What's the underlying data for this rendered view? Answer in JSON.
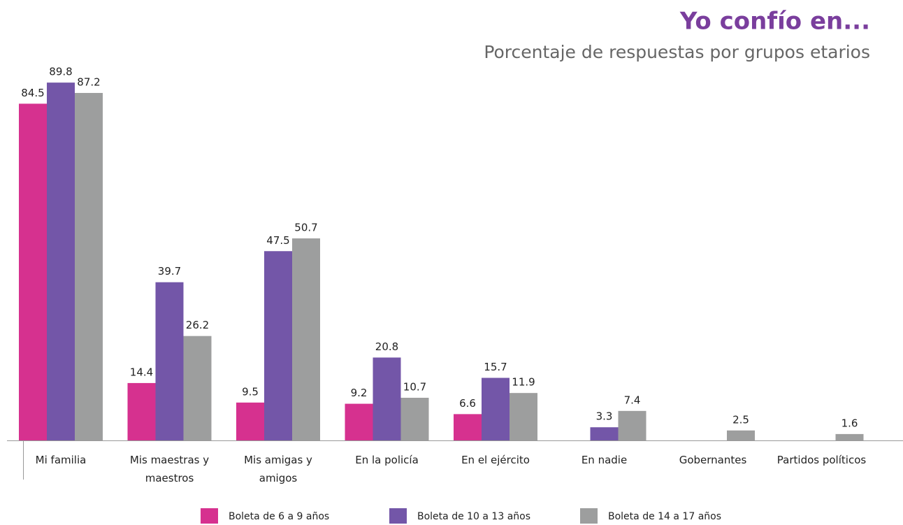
{
  "chart_data": {
    "type": "bar",
    "title": "Yo confío en...",
    "subtitle": "Porcentaje de respuestas por grupos etarios",
    "categories": [
      "Mi familia",
      "Mis maestras y maestros",
      "Mis amigas y amigos",
      "En la policía",
      "En el ejército",
      "En nadie",
      "Gobernantes",
      "Partidos políticos"
    ],
    "series": [
      {
        "name": "Boleta de 6 a 9 años",
        "color": "#d6318f",
        "values": [
          84.5,
          14.4,
          9.5,
          9.2,
          6.6,
          null,
          null,
          null
        ]
      },
      {
        "name": "Boleta de 10 a 13 años",
        "color": "#7356a8",
        "values": [
          89.8,
          39.7,
          47.5,
          20.8,
          15.7,
          3.3,
          null,
          null
        ]
      },
      {
        "name": "Boleta de 14 a 17 años",
        "color": "#9d9e9e",
        "values": [
          87.2,
          26.2,
          50.7,
          10.7,
          11.9,
          7.4,
          2.5,
          1.6
        ]
      }
    ],
    "legend": "bottom"
  }
}
